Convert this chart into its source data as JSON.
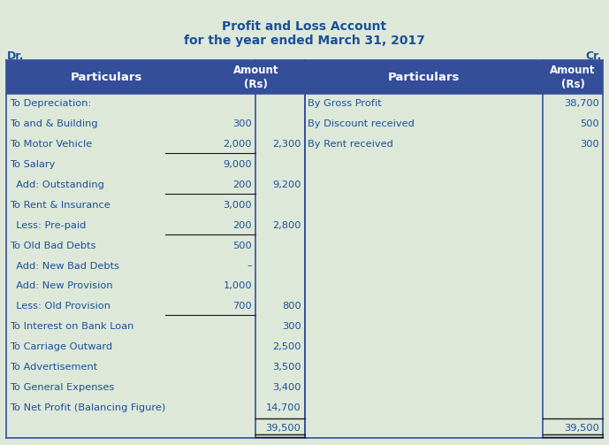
{
  "title1": "Profit and Loss Account",
  "title2": "for the year ended March 31, 2017",
  "dr_label": "Dr.",
  "cr_label": "Cr.",
  "header_bg": "#354E9A",
  "header_text": "#FFFFFF",
  "body_bg": "#DDE8D8",
  "outer_bg": "#DDE8D8",
  "body_text": "#1B4F9B",
  "title_color": "#1B5099",
  "left_rows": [
    {
      "particulars": "To Depreciation:",
      "sub_amount": "",
      "amount": "",
      "underline_sub": false
    },
    {
      "particulars": "To and & Building",
      "sub_amount": "300",
      "amount": "",
      "underline_sub": false
    },
    {
      "particulars": "To Motor Vehicle",
      "sub_amount": "2,000",
      "amount": "2,300",
      "underline_sub": true
    },
    {
      "particulars": "To Salary",
      "sub_amount": "9,000",
      "amount": "",
      "underline_sub": false
    },
    {
      "particulars": "  Add: Outstanding",
      "sub_amount": "200",
      "amount": "9,200",
      "underline_sub": true
    },
    {
      "particulars": "To Rent & Insurance",
      "sub_amount": "3,000",
      "amount": "",
      "underline_sub": false
    },
    {
      "particulars": "  Less: Pre-paid",
      "sub_amount": "200",
      "amount": "2,800",
      "underline_sub": true
    },
    {
      "particulars": "To Old Bad Debts",
      "sub_amount": "500",
      "amount": "",
      "underline_sub": false
    },
    {
      "particulars": "  Add: New Bad Debts",
      "sub_amount": "–",
      "amount": "",
      "underline_sub": false
    },
    {
      "particulars": "  Add: New Provision",
      "sub_amount": "1,000",
      "amount": "",
      "underline_sub": false
    },
    {
      "particulars": "  Less: Old Provision",
      "sub_amount": "700",
      "amount": "800",
      "underline_sub": true
    },
    {
      "particulars": "To Interest on Bank Loan",
      "sub_amount": "",
      "amount": "300",
      "underline_sub": false
    },
    {
      "particulars": "To Carriage Outward",
      "sub_amount": "",
      "amount": "2,500",
      "underline_sub": false
    },
    {
      "particulars": "To Advertisement",
      "sub_amount": "",
      "amount": "3,500",
      "underline_sub": false
    },
    {
      "particulars": "To General Expenses",
      "sub_amount": "",
      "amount": "3,400",
      "underline_sub": false
    },
    {
      "particulars": "To Net Profit (Balancing Figure)",
      "sub_amount": "",
      "amount": "14,700",
      "underline_sub": false
    },
    {
      "particulars": "",
      "sub_amount": "",
      "amount": "39,500",
      "underline_sub": false,
      "total": true
    }
  ],
  "right_rows": [
    {
      "particulars": "By Gross Profit",
      "amount": "38,700"
    },
    {
      "particulars": "By Discount received",
      "amount": "500"
    },
    {
      "particulars": "By Rent received",
      "amount": "300"
    },
    {
      "particulars": "",
      "amount": ""
    },
    {
      "particulars": "",
      "amount": ""
    },
    {
      "particulars": "",
      "amount": ""
    },
    {
      "particulars": "",
      "amount": ""
    },
    {
      "particulars": "",
      "amount": ""
    },
    {
      "particulars": "",
      "amount": ""
    },
    {
      "particulars": "",
      "amount": ""
    },
    {
      "particulars": "",
      "amount": ""
    },
    {
      "particulars": "",
      "amount": ""
    },
    {
      "particulars": "",
      "amount": ""
    },
    {
      "particulars": "",
      "amount": ""
    },
    {
      "particulars": "",
      "amount": ""
    },
    {
      "particulars": "",
      "amount": ""
    },
    {
      "particulars": "",
      "amount": "39,500",
      "total": true
    }
  ]
}
